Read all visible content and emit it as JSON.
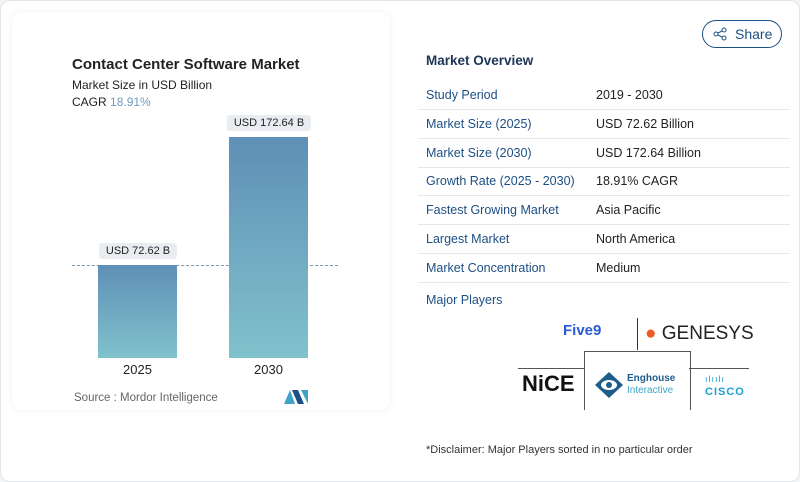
{
  "header": {
    "share_label": "Share",
    "share_icon": "share-icon"
  },
  "chart": {
    "title": "Contact Center Software Market",
    "subtitle": "Market Size in USD Billion",
    "cagr_label": "CAGR",
    "cagr_value": "18.91%",
    "source": "Source :  Mordor Intelligence",
    "labels": [
      "USD 72.62 B",
      "USD 172.64 B"
    ]
  },
  "chart_data": {
    "type": "bar",
    "title": "Contact Center Software Market",
    "categories": [
      "2025",
      "2030"
    ],
    "values": [
      72.62,
      172.64
    ],
    "data_labels": [
      "USD 72.62 B",
      "USD 172.64 B"
    ],
    "ylabel": "Market Size in USD Billion",
    "ylim": [
      0,
      172.64
    ],
    "grid": false,
    "colors": [
      "#5f8fb6",
      "#80c2cc"
    ]
  },
  "overview": {
    "title": "Market Overview",
    "rows": [
      {
        "k": "Study Period",
        "v": "2019 - 2030"
      },
      {
        "k": "Market Size (2025)",
        "v": "USD 72.62 Billion"
      },
      {
        "k": "Market Size (2030)",
        "v": "USD 172.64 Billion"
      },
      {
        "k": "Growth Rate (2025 - 2030)",
        "v": "18.91% CAGR"
      },
      {
        "k": "Fastest Growing Market",
        "v": "Asia Pacific"
      },
      {
        "k": "Largest Market",
        "v": "North America"
      },
      {
        "k": "Market Concentration",
        "v": "Medium"
      }
    ],
    "players_title": "Major Players",
    "players": [
      "Five9",
      "GENESYS",
      "NiCE",
      "Enghouse",
      "Interactive",
      "cisco"
    ],
    "disclaimer": "*Disclaimer: Major Players sorted in no particular order"
  }
}
